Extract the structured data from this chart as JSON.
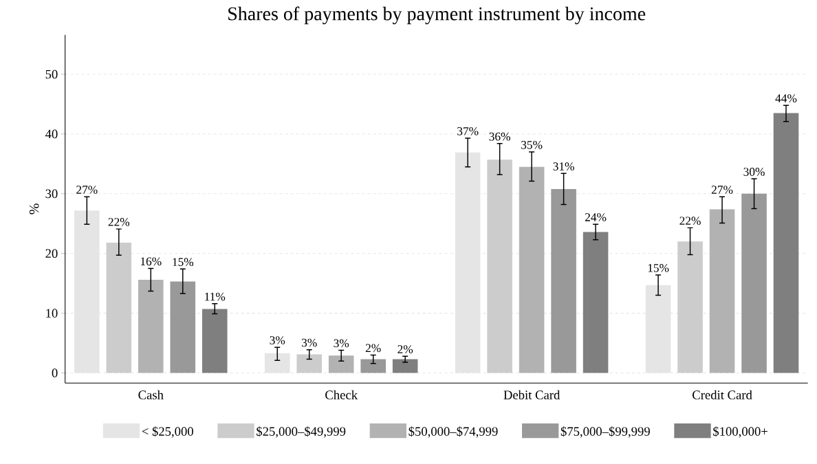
{
  "chart_data": {
    "type": "bar",
    "title": "Shares of payments by payment instrument by income",
    "ylabel": "%",
    "categories": [
      "Cash",
      "Check",
      "Debit Card",
      "Credit Card"
    ],
    "series": [
      {
        "name": "< $25,000",
        "color": "#e5e5e5",
        "values": [
          27.2,
          3.3,
          36.9,
          14.7
        ],
        "errors": [
          [
            24.9,
            29.5
          ],
          [
            2.1,
            4.3
          ],
          [
            34.5,
            39.3
          ],
          [
            13.0,
            16.4
          ]
        ],
        "value_labels": [
          "27%",
          "3%",
          "37%",
          "15%"
        ]
      },
      {
        "name": "$25,000–$49,999",
        "color": "#cccccc",
        "values": [
          21.8,
          3.1,
          35.7,
          22.0
        ],
        "errors": [
          [
            19.7,
            24.1
          ],
          [
            2.3,
            3.9
          ],
          [
            33.2,
            38.4
          ],
          [
            19.8,
            24.3
          ]
        ],
        "value_labels": [
          "22%",
          "3%",
          "36%",
          "22%"
        ]
      },
      {
        "name": "$50,000–$74,999",
        "color": "#b2b2b2",
        "values": [
          15.6,
          2.9,
          34.5,
          27.4
        ],
        "errors": [
          [
            13.7,
            17.5
          ],
          [
            2.0,
            3.8
          ],
          [
            32.1,
            37.0
          ],
          [
            25.1,
            29.5
          ]
        ],
        "value_labels": [
          "16%",
          "3%",
          "35%",
          "27%"
        ]
      },
      {
        "name": "$75,000–$99,999",
        "color": "#999999",
        "values": [
          15.3,
          2.3,
          30.8,
          30.0
        ],
        "errors": [
          [
            13.3,
            17.4
          ],
          [
            1.6,
            3.0
          ],
          [
            28.2,
            33.4
          ],
          [
            27.5,
            32.5
          ]
        ],
        "value_labels": [
          "15%",
          "2%",
          "31%",
          "30%"
        ]
      },
      {
        "name": "$100,000+",
        "color": "#7f7f7f",
        "values": [
          10.7,
          2.3,
          23.6,
          43.5
        ],
        "errors": [
          [
            9.9,
            11.6
          ],
          [
            1.8,
            2.8
          ],
          [
            22.3,
            24.9
          ],
          [
            42.1,
            44.8
          ]
        ],
        "value_labels": [
          "11%",
          "2%",
          "24%",
          "44%"
        ]
      }
    ],
    "ylim": [
      -1.7,
      56.6
    ],
    "yticks": [
      0,
      10,
      20,
      30,
      40,
      50
    ],
    "grid": "y",
    "legend": "bottom"
  }
}
